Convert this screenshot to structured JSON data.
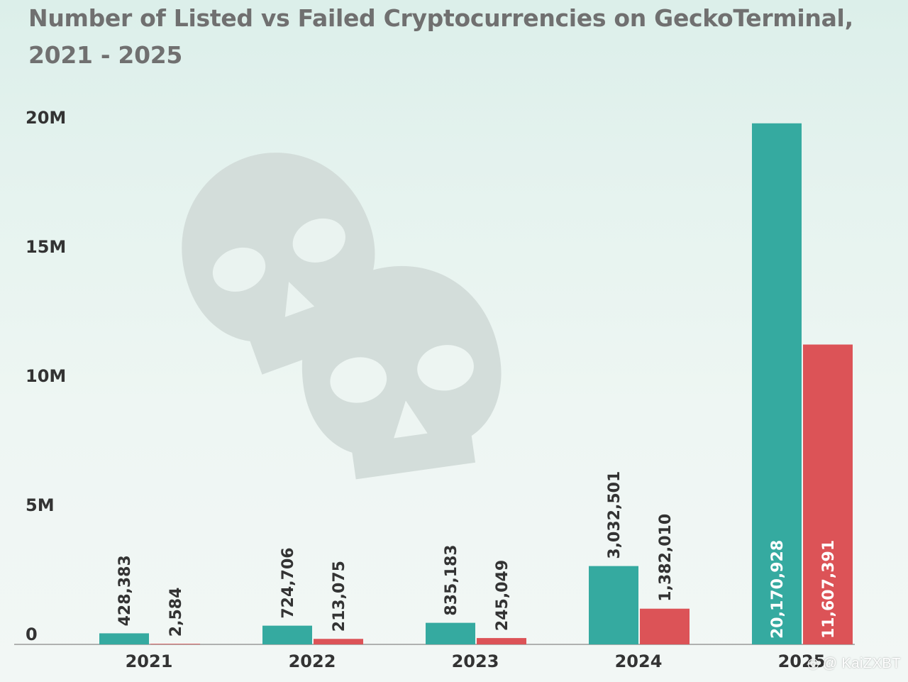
{
  "chart_data": {
    "type": "bar",
    "title": "Number of Listed vs Failed Cryptocurrencies on GeckoTerminal, 2021 - 2025",
    "categories": [
      "2021",
      "2022",
      "2023",
      "2024",
      "2025"
    ],
    "series": [
      {
        "name": "",
        "color": "#35aaa0",
        "values": [
          428383,
          724706,
          835183,
          3032501,
          20170928
        ],
        "labels": [
          "428,383",
          "724,706",
          "835,183",
          "3,032,501",
          "20,170,928"
        ]
      },
      {
        "name": "",
        "color": "#dc5357",
        "values": [
          2584,
          213075,
          245049,
          1382010,
          11607391
        ],
        "labels": [
          "2,584",
          "213,075",
          "245,049",
          "1,382,010",
          "11,607,391"
        ]
      }
    ],
    "y_ticks": [
      {
        "value": 0,
        "label": "0"
      },
      {
        "value": 5000000,
        "label": "5M"
      },
      {
        "value": 10000000,
        "label": "10M"
      },
      {
        "value": 15000000,
        "label": "15M"
      },
      {
        "value": 20000000,
        "label": "20M"
      }
    ],
    "ylim": [
      0,
      20000000
    ],
    "xlabel": "",
    "ylabel": "",
    "grid": false,
    "legend": "none"
  },
  "decoration": {
    "icon": "skull-icon",
    "color": "#d3ddda"
  },
  "watermark": {
    "icon": "weibo-icon",
    "text": "@ KaiZXBT"
  }
}
